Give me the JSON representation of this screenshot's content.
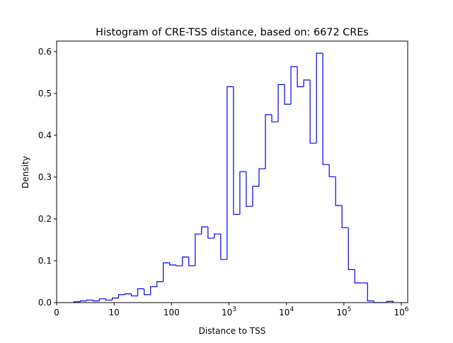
{
  "chart_data": {
    "type": "histogram",
    "title": "Histogram of CRE-TSS distance, based on: 6672 CREs",
    "xlabel": "Distance to TSS",
    "ylabel": "Density",
    "x_scale": "log",
    "xlim": [
      1,
      1290000
    ],
    "ylim": [
      0,
      0.625
    ],
    "grid": false,
    "histtype": "step",
    "color": "#0000ff",
    "bin_range": [
      2,
      718000
    ],
    "bin_count": 50,
    "density": [
      0.002,
      0.004,
      0.006,
      0.004,
      0.009,
      0.006,
      0.011,
      0.019,
      0.021,
      0.016,
      0.033,
      0.019,
      0.038,
      0.05,
      0.095,
      0.09,
      0.088,
      0.109,
      0.088,
      0.164,
      0.181,
      0.154,
      0.164,
      0.103,
      0.516,
      0.211,
      0.313,
      0.23,
      0.278,
      0.32,
      0.449,
      0.432,
      0.521,
      0.474,
      0.564,
      0.516,
      0.532,
      0.381,
      0.596,
      0.33,
      0.301,
      0.232,
      0.179,
      0.079,
      0.047,
      0.047,
      0.004,
      0.0,
      0.0,
      0.003
    ],
    "x_ticks": [
      {
        "value": 1,
        "label": "0",
        "sup": ""
      },
      {
        "value": 10,
        "label": "10",
        "sup": ""
      },
      {
        "value": 100,
        "label": "100",
        "sup": ""
      },
      {
        "value": 1000,
        "label": "10",
        "sup": "3"
      },
      {
        "value": 10000,
        "label": "10",
        "sup": "4"
      },
      {
        "value": 100000,
        "label": "10",
        "sup": "5"
      },
      {
        "value": 1000000,
        "label": "10",
        "sup": "6"
      }
    ],
    "y_ticks": [
      {
        "value": 0.0,
        "label": "0.0"
      },
      {
        "value": 0.1,
        "label": "0.1"
      },
      {
        "value": 0.2,
        "label": "0.2"
      },
      {
        "value": 0.3,
        "label": "0.3"
      },
      {
        "value": 0.4,
        "label": "0.4"
      },
      {
        "value": 0.5,
        "label": "0.5"
      },
      {
        "value": 0.6,
        "label": "0.6"
      }
    ]
  }
}
